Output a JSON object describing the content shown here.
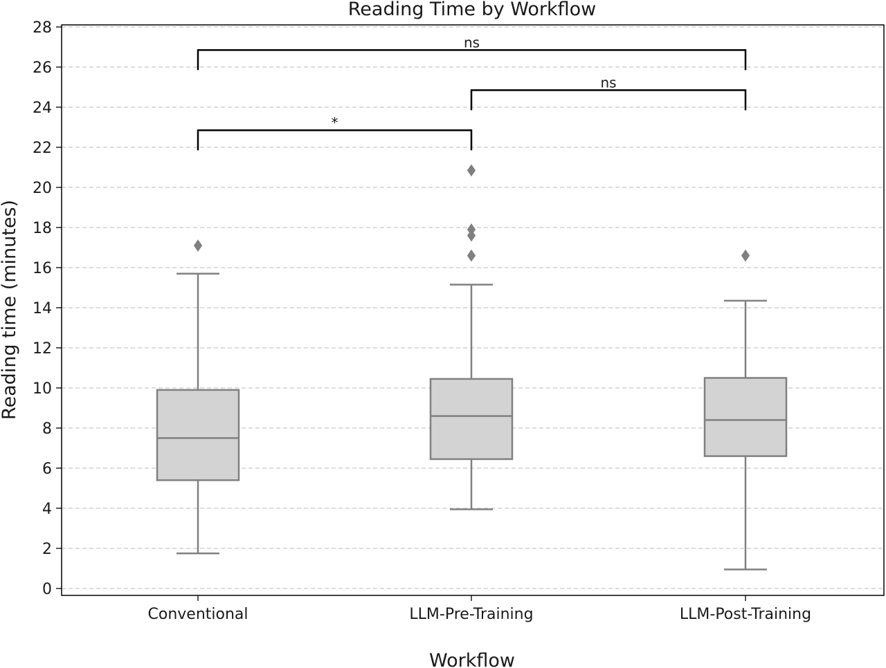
{
  "chart_data": {
    "type": "box",
    "title": "Reading Time by Workflow",
    "xlabel": "Workflow",
    "ylabel": "Reading time (minutes)",
    "ylim": [
      -0.4,
      28.1
    ],
    "yticks": [
      0,
      2,
      4,
      6,
      8,
      10,
      12,
      14,
      16,
      18,
      20,
      22,
      24,
      26,
      28
    ],
    "grid": "horizontal dashed",
    "box_color": "#d3d3d3",
    "line_color": "#808080",
    "categories": [
      "Conventional",
      "LLM-Pre-Training",
      "LLM-Post-Training"
    ],
    "boxes": [
      {
        "name": "Conventional",
        "whisker_low": 1.75,
        "q1": 5.4,
        "median": 7.5,
        "q3": 9.9,
        "whisker_high": 15.7,
        "outliers": [
          17.1
        ]
      },
      {
        "name": "LLM-Pre-Training",
        "whisker_low": 3.95,
        "q1": 6.45,
        "median": 8.6,
        "q3": 10.45,
        "whisker_high": 15.15,
        "outliers": [
          20.85,
          17.9,
          17.6,
          16.6
        ]
      },
      {
        "name": "LLM-Post-Training",
        "whisker_low": 0.95,
        "q1": 6.6,
        "median": 8.4,
        "q3": 10.5,
        "whisker_high": 14.35,
        "outliers": [
          16.6
        ]
      }
    ],
    "annotations": [
      {
        "from": 0,
        "to": 1,
        "label": "*",
        "y": 22.85,
        "tip": 21.85
      },
      {
        "from": 1,
        "to": 2,
        "label": "ns",
        "y": 24.85,
        "tip": 23.85
      },
      {
        "from": 0,
        "to": 2,
        "label": "ns",
        "y": 26.85,
        "tip": 25.85
      }
    ]
  }
}
